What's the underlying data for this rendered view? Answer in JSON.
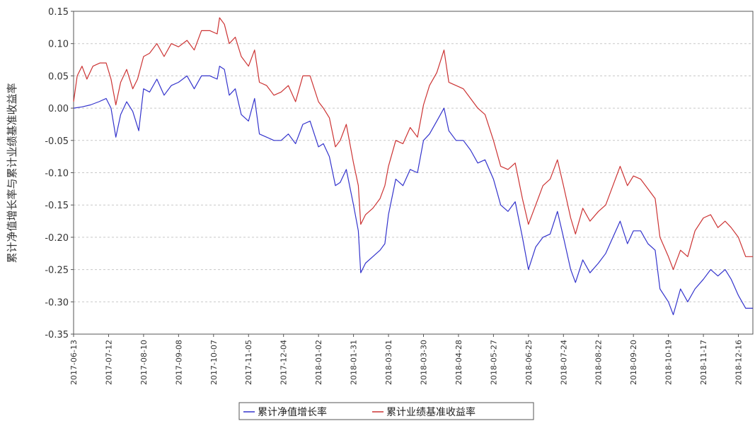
{
  "chart_data": {
    "type": "line",
    "title": "",
    "xlabel": "",
    "ylabel": "累计净值增长率与累计业绩基准收益率",
    "ylim": [
      -0.35,
      0.15
    ],
    "yticks": [
      "0.15",
      "0.10",
      "0.05",
      "0.00",
      "-0.05",
      "-0.10",
      "-0.15",
      "-0.20",
      "-0.25",
      "-0.30",
      "-0.35"
    ],
    "x_ticks": [
      "2017-06-13",
      "2017-07-12",
      "2017-08-10",
      "2017-09-08",
      "2017-10-07",
      "2017-11-05",
      "2017-12-04",
      "2018-01-02",
      "2018-01-31",
      "2018-03-01",
      "2018-03-30",
      "2018-04-28",
      "2018-05-27",
      "2018-06-25",
      "2018-07-24",
      "2018-08-22",
      "2018-09-20",
      "2018-10-19",
      "2018-11-17",
      "2018-12-16"
    ],
    "grid": true,
    "legend_position": "bottom",
    "series": [
      {
        "name": "累计净值增长率",
        "color": "#3333cc",
        "points": [
          [
            "2017-06-13",
            0.0
          ],
          [
            "2017-06-20",
            0.002
          ],
          [
            "2017-06-27",
            0.005
          ],
          [
            "2017-07-04",
            0.01
          ],
          [
            "2017-07-10",
            0.015
          ],
          [
            "2017-07-14",
            0.0
          ],
          [
            "2017-07-18",
            -0.045
          ],
          [
            "2017-07-22",
            -0.01
          ],
          [
            "2017-07-27",
            0.01
          ],
          [
            "2017-08-01",
            -0.005
          ],
          [
            "2017-08-06",
            -0.035
          ],
          [
            "2017-08-10",
            0.03
          ],
          [
            "2017-08-15",
            0.025
          ],
          [
            "2017-08-21",
            0.045
          ],
          [
            "2017-08-27",
            0.02
          ],
          [
            "2017-09-02",
            0.035
          ],
          [
            "2017-09-08",
            0.04
          ],
          [
            "2017-09-15",
            0.05
          ],
          [
            "2017-09-21",
            0.03
          ],
          [
            "2017-09-27",
            0.05
          ],
          [
            "2017-10-04",
            0.05
          ],
          [
            "2017-10-10",
            0.045
          ],
          [
            "2017-10-12",
            0.065
          ],
          [
            "2017-10-16",
            0.06
          ],
          [
            "2017-10-20",
            0.02
          ],
          [
            "2017-10-25",
            0.03
          ],
          [
            "2017-10-30",
            -0.01
          ],
          [
            "2017-11-05",
            -0.02
          ],
          [
            "2017-11-10",
            0.015
          ],
          [
            "2017-11-14",
            -0.04
          ],
          [
            "2017-11-20",
            -0.045
          ],
          [
            "2017-11-26",
            -0.05
          ],
          [
            "2017-12-02",
            -0.05
          ],
          [
            "2017-12-08",
            -0.04
          ],
          [
            "2017-12-14",
            -0.055
          ],
          [
            "2017-12-20",
            -0.025
          ],
          [
            "2017-12-26",
            -0.02
          ],
          [
            "2018-01-02",
            -0.06
          ],
          [
            "2018-01-06",
            -0.055
          ],
          [
            "2018-01-11",
            -0.075
          ],
          [
            "2018-01-16",
            -0.12
          ],
          [
            "2018-01-20",
            -0.115
          ],
          [
            "2018-01-25",
            -0.095
          ],
          [
            "2018-01-31",
            -0.15
          ],
          [
            "2018-02-04",
            -0.19
          ],
          [
            "2018-02-06",
            -0.255
          ],
          [
            "2018-02-10",
            -0.24
          ],
          [
            "2018-02-16",
            -0.23
          ],
          [
            "2018-02-22",
            -0.22
          ],
          [
            "2018-02-26",
            -0.21
          ],
          [
            "2018-03-01",
            -0.165
          ],
          [
            "2018-03-07",
            -0.11
          ],
          [
            "2018-03-13",
            -0.12
          ],
          [
            "2018-03-19",
            -0.095
          ],
          [
            "2018-03-25",
            -0.1
          ],
          [
            "2018-03-30",
            -0.05
          ],
          [
            "2018-04-04",
            -0.04
          ],
          [
            "2018-04-10",
            -0.02
          ],
          [
            "2018-04-16",
            0.0
          ],
          [
            "2018-04-20",
            -0.035
          ],
          [
            "2018-04-26",
            -0.05
          ],
          [
            "2018-05-02",
            -0.05
          ],
          [
            "2018-05-08",
            -0.065
          ],
          [
            "2018-05-14",
            -0.085
          ],
          [
            "2018-05-20",
            -0.08
          ],
          [
            "2018-05-27",
            -0.11
          ],
          [
            "2018-06-02",
            -0.15
          ],
          [
            "2018-06-08",
            -0.16
          ],
          [
            "2018-06-14",
            -0.145
          ],
          [
            "2018-06-20",
            -0.2
          ],
          [
            "2018-06-25",
            -0.25
          ],
          [
            "2018-07-01",
            -0.215
          ],
          [
            "2018-07-07",
            -0.2
          ],
          [
            "2018-07-13",
            -0.195
          ],
          [
            "2018-07-19",
            -0.16
          ],
          [
            "2018-07-24",
            -0.2
          ],
          [
            "2018-07-30",
            -0.25
          ],
          [
            "2018-08-03",
            -0.27
          ],
          [
            "2018-08-09",
            -0.235
          ],
          [
            "2018-08-15",
            -0.255
          ],
          [
            "2018-08-22",
            -0.24
          ],
          [
            "2018-08-28",
            -0.225
          ],
          [
            "2018-09-03",
            -0.2
          ],
          [
            "2018-09-09",
            -0.175
          ],
          [
            "2018-09-15",
            -0.21
          ],
          [
            "2018-09-20",
            -0.19
          ],
          [
            "2018-09-26",
            -0.19
          ],
          [
            "2018-10-02",
            -0.21
          ],
          [
            "2018-10-08",
            -0.22
          ],
          [
            "2018-10-12",
            -0.28
          ],
          [
            "2018-10-19",
            -0.3
          ],
          [
            "2018-10-23",
            -0.32
          ],
          [
            "2018-10-29",
            -0.28
          ],
          [
            "2018-11-04",
            -0.3
          ],
          [
            "2018-11-10",
            -0.28
          ],
          [
            "2018-11-17",
            -0.265
          ],
          [
            "2018-11-23",
            -0.25
          ],
          [
            "2018-11-29",
            -0.26
          ],
          [
            "2018-12-05",
            -0.25
          ],
          [
            "2018-12-10",
            -0.265
          ],
          [
            "2018-12-16",
            -0.29
          ],
          [
            "2018-12-22",
            -0.31
          ],
          [
            "2018-12-28",
            -0.31
          ]
        ]
      },
      {
        "name": "累计业绩基准收益率",
        "color": "#cc3333",
        "points": [
          [
            "2017-06-13",
            0.01
          ],
          [
            "2017-06-16",
            0.05
          ],
          [
            "2017-06-20",
            0.065
          ],
          [
            "2017-06-24",
            0.045
          ],
          [
            "2017-06-29",
            0.065
          ],
          [
            "2017-07-05",
            0.07
          ],
          [
            "2017-07-10",
            0.07
          ],
          [
            "2017-07-14",
            0.045
          ],
          [
            "2017-07-18",
            0.005
          ],
          [
            "2017-07-22",
            0.04
          ],
          [
            "2017-07-27",
            0.06
          ],
          [
            "2017-08-01",
            0.03
          ],
          [
            "2017-08-05",
            0.045
          ],
          [
            "2017-08-10",
            0.08
          ],
          [
            "2017-08-15",
            0.085
          ],
          [
            "2017-08-21",
            0.1
          ],
          [
            "2017-08-27",
            0.08
          ],
          [
            "2017-09-02",
            0.1
          ],
          [
            "2017-09-08",
            0.095
          ],
          [
            "2017-09-15",
            0.105
          ],
          [
            "2017-09-21",
            0.09
          ],
          [
            "2017-09-27",
            0.12
          ],
          [
            "2017-10-04",
            0.12
          ],
          [
            "2017-10-10",
            0.115
          ],
          [
            "2017-10-12",
            0.14
          ],
          [
            "2017-10-16",
            0.13
          ],
          [
            "2017-10-20",
            0.1
          ],
          [
            "2017-10-25",
            0.11
          ],
          [
            "2017-10-30",
            0.08
          ],
          [
            "2017-11-05",
            0.065
          ],
          [
            "2017-11-10",
            0.09
          ],
          [
            "2017-11-14",
            0.04
          ],
          [
            "2017-11-20",
            0.035
          ],
          [
            "2017-11-26",
            0.02
          ],
          [
            "2017-12-02",
            0.025
          ],
          [
            "2017-12-08",
            0.035
          ],
          [
            "2017-12-14",
            0.01
          ],
          [
            "2017-12-20",
            0.05
          ],
          [
            "2017-12-26",
            0.05
          ],
          [
            "2018-01-02",
            0.01
          ],
          [
            "2018-01-06",
            0.0
          ],
          [
            "2018-01-11",
            -0.015
          ],
          [
            "2018-01-16",
            -0.06
          ],
          [
            "2018-01-20",
            -0.05
          ],
          [
            "2018-01-25",
            -0.025
          ],
          [
            "2018-01-31",
            -0.085
          ],
          [
            "2018-02-04",
            -0.12
          ],
          [
            "2018-02-06",
            -0.18
          ],
          [
            "2018-02-10",
            -0.165
          ],
          [
            "2018-02-16",
            -0.155
          ],
          [
            "2018-02-22",
            -0.14
          ],
          [
            "2018-02-26",
            -0.12
          ],
          [
            "2018-03-01",
            -0.09
          ],
          [
            "2018-03-07",
            -0.05
          ],
          [
            "2018-03-13",
            -0.055
          ],
          [
            "2018-03-19",
            -0.03
          ],
          [
            "2018-03-25",
            -0.045
          ],
          [
            "2018-03-30",
            0.005
          ],
          [
            "2018-04-04",
            0.035
          ],
          [
            "2018-04-10",
            0.055
          ],
          [
            "2018-04-16",
            0.09
          ],
          [
            "2018-04-20",
            0.04
          ],
          [
            "2018-04-26",
            0.035
          ],
          [
            "2018-05-02",
            0.03
          ],
          [
            "2018-05-08",
            0.015
          ],
          [
            "2018-05-14",
            0.0
          ],
          [
            "2018-05-20",
            -0.01
          ],
          [
            "2018-05-27",
            -0.05
          ],
          [
            "2018-06-02",
            -0.09
          ],
          [
            "2018-06-08",
            -0.095
          ],
          [
            "2018-06-14",
            -0.085
          ],
          [
            "2018-06-20",
            -0.14
          ],
          [
            "2018-06-25",
            -0.18
          ],
          [
            "2018-07-01",
            -0.15
          ],
          [
            "2018-07-07",
            -0.12
          ],
          [
            "2018-07-13",
            -0.11
          ],
          [
            "2018-07-19",
            -0.08
          ],
          [
            "2018-07-24",
            -0.12
          ],
          [
            "2018-07-30",
            -0.17
          ],
          [
            "2018-08-03",
            -0.195
          ],
          [
            "2018-08-09",
            -0.155
          ],
          [
            "2018-08-15",
            -0.175
          ],
          [
            "2018-08-22",
            -0.16
          ],
          [
            "2018-08-28",
            -0.15
          ],
          [
            "2018-09-03",
            -0.12
          ],
          [
            "2018-09-09",
            -0.09
          ],
          [
            "2018-09-15",
            -0.12
          ],
          [
            "2018-09-20",
            -0.105
          ],
          [
            "2018-09-26",
            -0.11
          ],
          [
            "2018-10-02",
            -0.125
          ],
          [
            "2018-10-08",
            -0.14
          ],
          [
            "2018-10-12",
            -0.2
          ],
          [
            "2018-10-19",
            -0.23
          ],
          [
            "2018-10-23",
            -0.25
          ],
          [
            "2018-10-29",
            -0.22
          ],
          [
            "2018-11-04",
            -0.23
          ],
          [
            "2018-11-10",
            -0.19
          ],
          [
            "2018-11-17",
            -0.17
          ],
          [
            "2018-11-23",
            -0.165
          ],
          [
            "2018-11-29",
            -0.185
          ],
          [
            "2018-12-05",
            -0.175
          ],
          [
            "2018-12-10",
            -0.185
          ],
          [
            "2018-12-16",
            -0.2
          ],
          [
            "2018-12-22",
            -0.23
          ],
          [
            "2018-12-28",
            -0.23
          ]
        ]
      }
    ]
  }
}
